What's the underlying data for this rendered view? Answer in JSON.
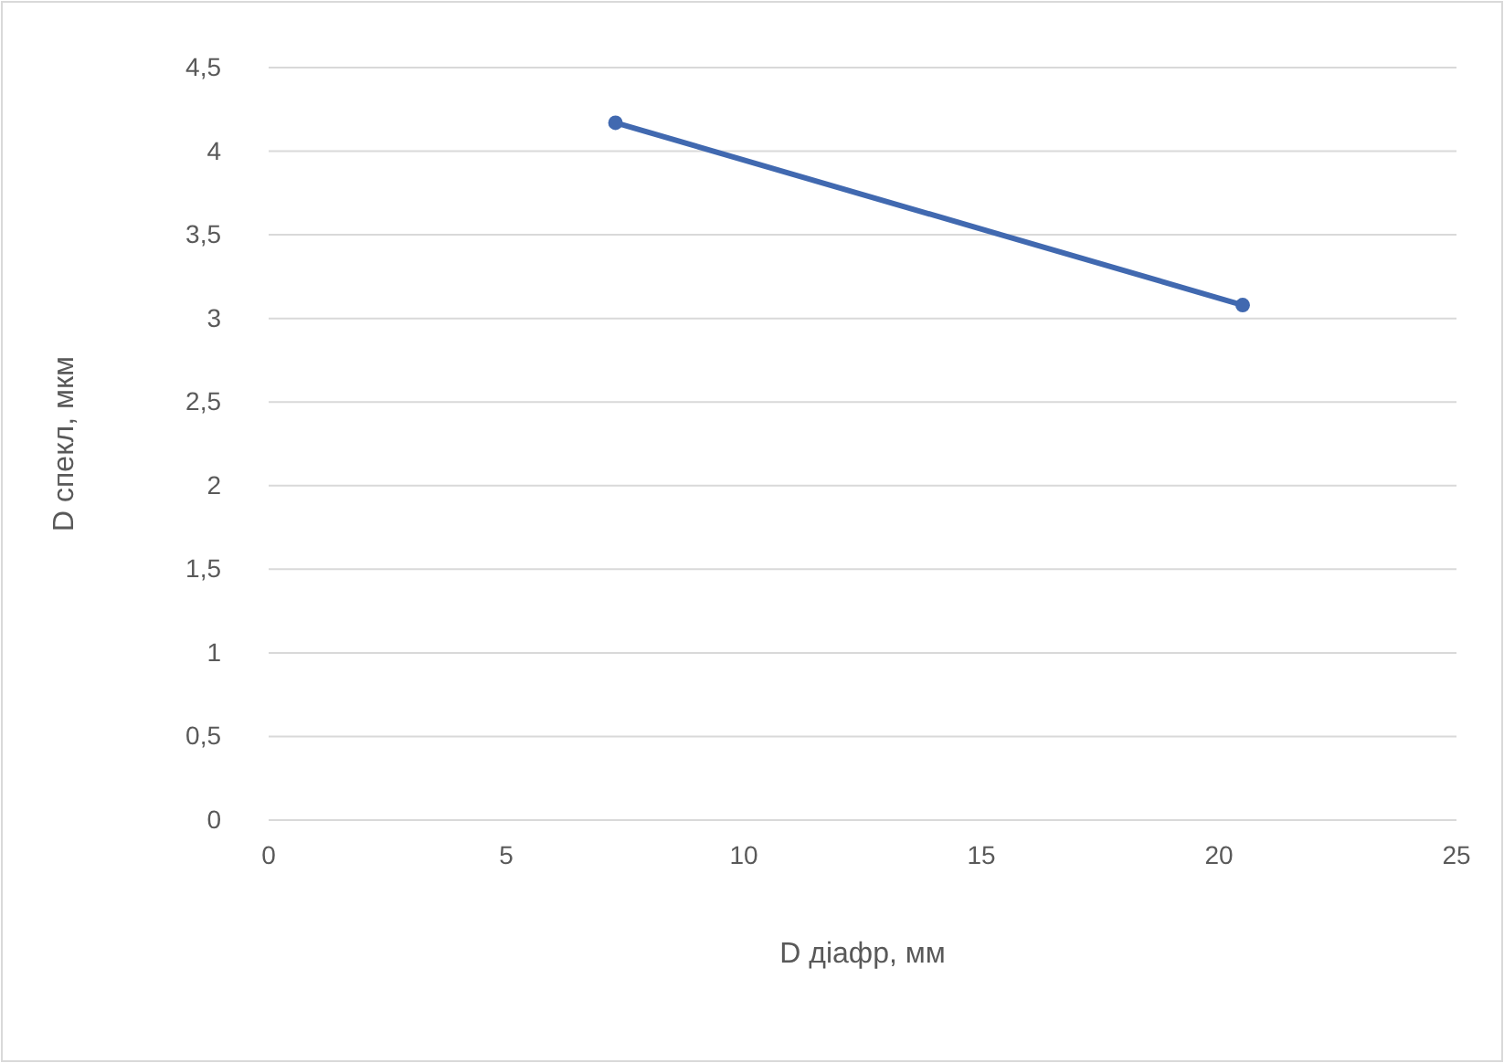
{
  "chart_data": {
    "type": "line",
    "xlabel": "D діафр, мм",
    "ylabel": "D спекл, мкм",
    "x": [
      7.3,
      20.5
    ],
    "series": [
      {
        "color": "#4169b0",
        "values": [
          4.17,
          3.08
        ]
      }
    ],
    "xlim": [
      0,
      25
    ],
    "xticks": [
      0,
      5,
      10,
      15,
      20,
      25
    ],
    "ylim": [
      0,
      4.5
    ],
    "yticks": [
      0,
      {
        "value": 0.5,
        "label": "0,5"
      },
      1,
      {
        "value": 1.5,
        "label": "1,5"
      },
      2,
      {
        "value": 2.5,
        "label": "2,5"
      },
      3,
      {
        "value": 3.5,
        "label": "3,5"
      },
      4,
      {
        "value": 4.5,
        "label": "4,5"
      }
    ],
    "grid": "y",
    "marker": "circle",
    "line_style": "solid"
  }
}
